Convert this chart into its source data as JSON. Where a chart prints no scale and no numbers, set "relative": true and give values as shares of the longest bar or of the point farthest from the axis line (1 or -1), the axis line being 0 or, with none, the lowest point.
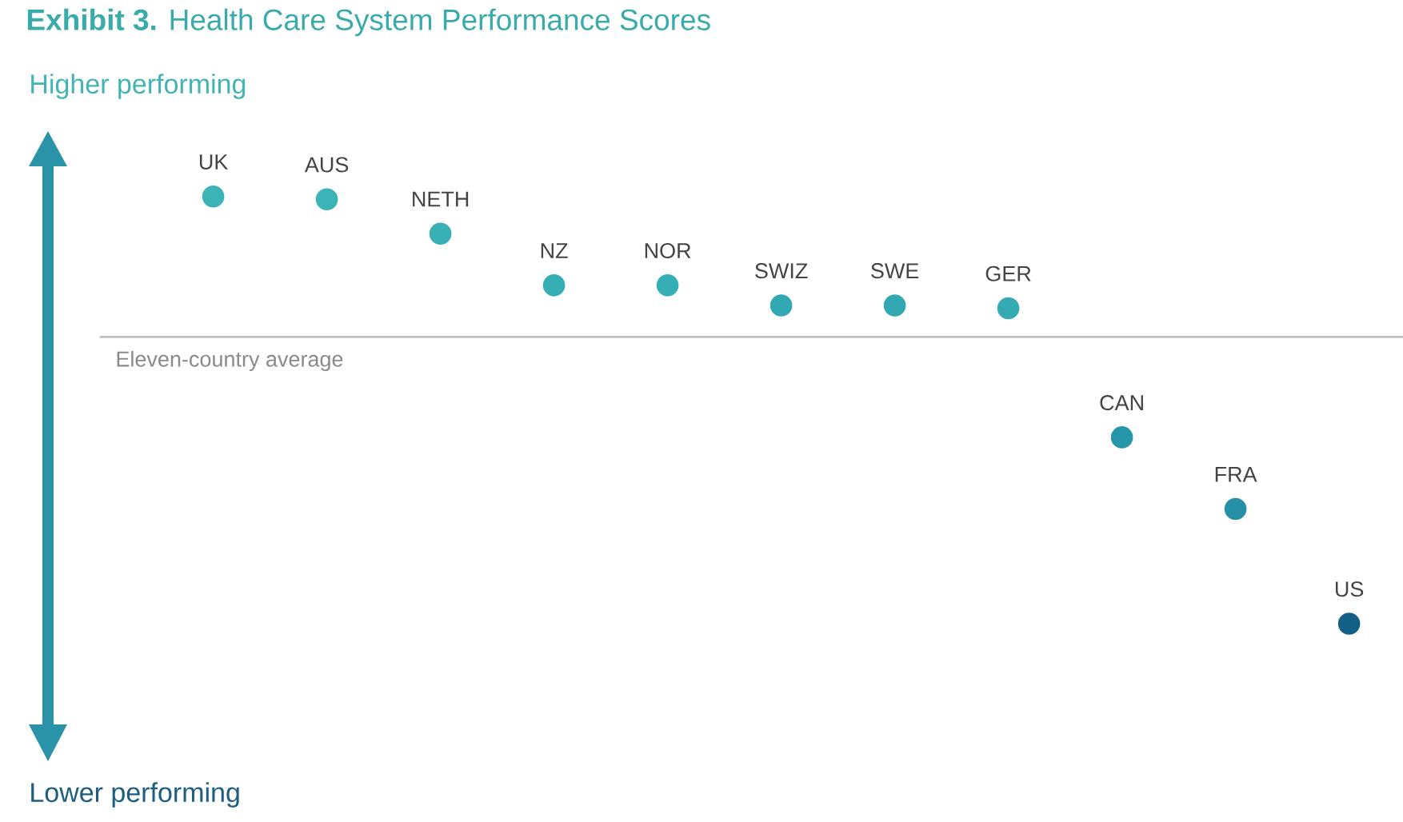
{
  "chart_data": {
    "type": "scatter",
    "title": "**Exhibit 3.** Health Care System Performance Scores",
    "categories": [
      "UK",
      "AUS",
      "NETH",
      "NZ",
      "NOR",
      "SWIZ",
      "SWE",
      "GER",
      "CAN",
      "FRA",
      "US"
    ],
    "values": [
      0.49,
      0.48,
      0.36,
      0.18,
      0.18,
      0.11,
      0.11,
      0.1,
      -0.35,
      -0.6,
      -1
    ],
    "colors": [
      "#3cb4b6",
      "#3cb4b6",
      "#38b0b4",
      "#36afb4",
      "#36afb4",
      "#32a9b2",
      "#32a9b2",
      "#34abb3",
      "#2796aa",
      "#2590a6",
      "#145f85"
    ],
    "relative": true,
    "marker": "circle",
    "ref_lines": [
      {
        "axis": "y",
        "value": 0,
        "label": "Eleven-country average",
        "color": "#b4b4b8"
      }
    ],
    "annotations": [
      "Higher performing",
      "Lower performing"
    ]
  }
}
